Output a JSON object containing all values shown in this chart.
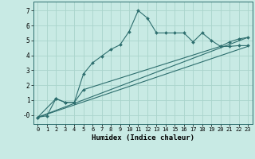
{
  "xlabel": "Humidex (Indice chaleur)",
  "background_color": "#c8eae4",
  "grid_color": "#aad4cc",
  "line_color": "#2d6e6e",
  "xlim": [
    -0.5,
    23.5
  ],
  "ylim": [
    -0.6,
    7.6
  ],
  "xticks": [
    0,
    1,
    2,
    3,
    4,
    5,
    6,
    7,
    8,
    9,
    10,
    11,
    12,
    13,
    14,
    15,
    16,
    17,
    18,
    19,
    20,
    21,
    22,
    23
  ],
  "yticks": [
    0,
    1,
    2,
    3,
    4,
    5,
    6,
    7
  ],
  "ytick_labels": [
    "-0",
    "1",
    "2",
    "3",
    "4",
    "5",
    "6",
    "7"
  ],
  "curve1_x": [
    0,
    1,
    2,
    3,
    4,
    5,
    6,
    7,
    8,
    9,
    10,
    11,
    12,
    13,
    14,
    15,
    16,
    17,
    18,
    19,
    20,
    21,
    22,
    23
  ],
  "curve1_y": [
    -0.15,
    -0.05,
    1.1,
    0.85,
    0.85,
    2.75,
    3.5,
    3.95,
    4.4,
    4.7,
    5.6,
    7.0,
    6.5,
    5.5,
    5.5,
    5.5,
    5.5,
    4.9,
    5.5,
    5.0,
    4.6,
    4.9,
    5.1,
    5.2
  ],
  "curve2_x": [
    0,
    2,
    3,
    4,
    5,
    20,
    21,
    22,
    23
  ],
  "curve2_y": [
    -0.15,
    1.1,
    0.85,
    0.85,
    1.7,
    4.6,
    4.6,
    4.65,
    4.65
  ],
  "line1_x": [
    0,
    23
  ],
  "line1_y": [
    -0.15,
    5.2
  ],
  "line2_x": [
    0,
    23
  ],
  "line2_y": [
    -0.15,
    4.6
  ]
}
